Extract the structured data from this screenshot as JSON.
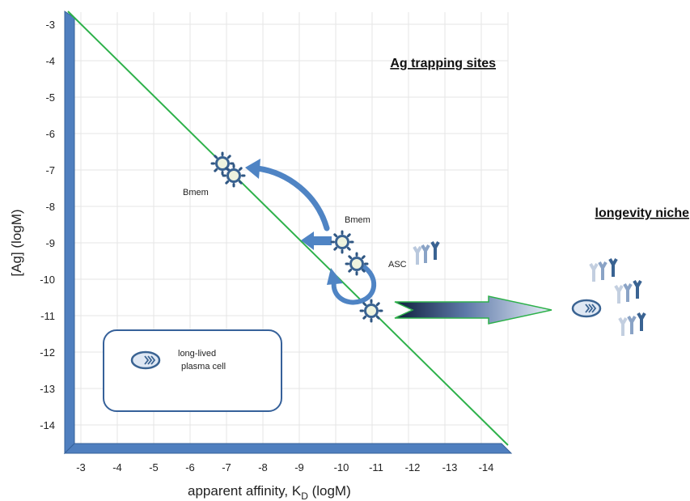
{
  "headings": {
    "trapping": "Ag trapping sites",
    "niche": "longevity niche"
  },
  "axes": {
    "x_title_main": "apparent affinity, K",
    "x_title_sub": "D",
    "x_title_unit": " (logM)",
    "y_title": "[Ag] (logM)",
    "x_ticks": [
      "-3",
      "-4",
      "-5",
      "-6",
      "-7",
      "-8",
      "-9",
      "-10",
      "-11",
      "-12",
      "-13",
      "-14"
    ],
    "y_ticks": [
      "-3",
      "-4",
      "-5",
      "-6",
      "-7",
      "-8",
      "-9",
      "-10",
      "-11",
      "-12",
      "-13",
      "-14"
    ]
  },
  "labels": {
    "bmem_left": "Bmem",
    "bmem_right": "Bmem",
    "asc": "ASC"
  },
  "legend": {
    "line1": "long-lived",
    "line2": "plasma cell"
  },
  "colors": {
    "axis_blue": "#4f7fbf",
    "axis_blue_dark": "#36619a",
    "diagonal_green": "#2db14a",
    "cell_fill": "#eef3df",
    "cell_stroke": "#3d5f8c",
    "arrow_blue": "#4f84c4",
    "grid": "#e4e4e4"
  }
}
